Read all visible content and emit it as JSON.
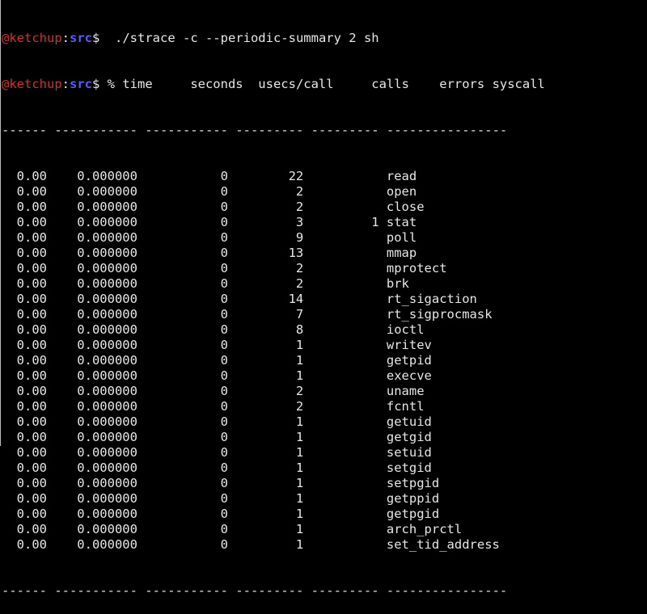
{
  "prompt": {
    "user": "@ketchup",
    "sep": ":",
    "dir": "src",
    "symbol": "$"
  },
  "command": "  ./strace -c --periodic-summary 2 sh",
  "header": {
    "time": "% time",
    "seconds": "seconds",
    "usecs": "usecs/call",
    "calls": "calls",
    "errors": "errors",
    "syscall": "syscall"
  },
  "separator": "------ ----------- ----------- --------- --------- ----------------",
  "colors": {
    "user": "#d03030",
    "dir": "#5a5aff",
    "text": "#e6e6e6",
    "background": "#000000"
  },
  "rows": [
    [
      "0.00",
      "0.000000",
      "0",
      "22",
      "",
      "read"
    ],
    [
      "0.00",
      "0.000000",
      "0",
      "2",
      "",
      "open"
    ],
    [
      "0.00",
      "0.000000",
      "0",
      "2",
      "",
      "close"
    ],
    [
      "0.00",
      "0.000000",
      "0",
      "3",
      "1",
      "stat"
    ],
    [
      "0.00",
      "0.000000",
      "0",
      "9",
      "",
      "poll"
    ],
    [
      "0.00",
      "0.000000",
      "0",
      "13",
      "",
      "mmap"
    ],
    [
      "0.00",
      "0.000000",
      "0",
      "2",
      "",
      "mprotect"
    ],
    [
      "0.00",
      "0.000000",
      "0",
      "2",
      "",
      "brk"
    ],
    [
      "0.00",
      "0.000000",
      "0",
      "14",
      "",
      "rt_sigaction"
    ],
    [
      "0.00",
      "0.000000",
      "0",
      "7",
      "",
      "rt_sigprocmask"
    ],
    [
      "0.00",
      "0.000000",
      "0",
      "8",
      "",
      "ioctl"
    ],
    [
      "0.00",
      "0.000000",
      "0",
      "1",
      "",
      "writev"
    ],
    [
      "0.00",
      "0.000000",
      "0",
      "1",
      "",
      "getpid"
    ],
    [
      "0.00",
      "0.000000",
      "0",
      "1",
      "",
      "execve"
    ],
    [
      "0.00",
      "0.000000",
      "0",
      "2",
      "",
      "uname"
    ],
    [
      "0.00",
      "0.000000",
      "0",
      "2",
      "",
      "fcntl"
    ],
    [
      "0.00",
      "0.000000",
      "0",
      "1",
      "",
      "getuid"
    ],
    [
      "0.00",
      "0.000000",
      "0",
      "1",
      "",
      "getgid"
    ],
    [
      "0.00",
      "0.000000",
      "0",
      "1",
      "",
      "setuid"
    ],
    [
      "0.00",
      "0.000000",
      "0",
      "1",
      "",
      "setgid"
    ],
    [
      "0.00",
      "0.000000",
      "0",
      "1",
      "",
      "setpgid"
    ],
    [
      "0.00",
      "0.000000",
      "0",
      "1",
      "",
      "getppid"
    ],
    [
      "0.00",
      "0.000000",
      "0",
      "1",
      "",
      "getpgid"
    ],
    [
      "0.00",
      "0.000000",
      "0",
      "1",
      "",
      "arch_prctl"
    ],
    [
      "0.00",
      "0.000000",
      "0",
      "1",
      "",
      "set_tid_address"
    ]
  ]
}
